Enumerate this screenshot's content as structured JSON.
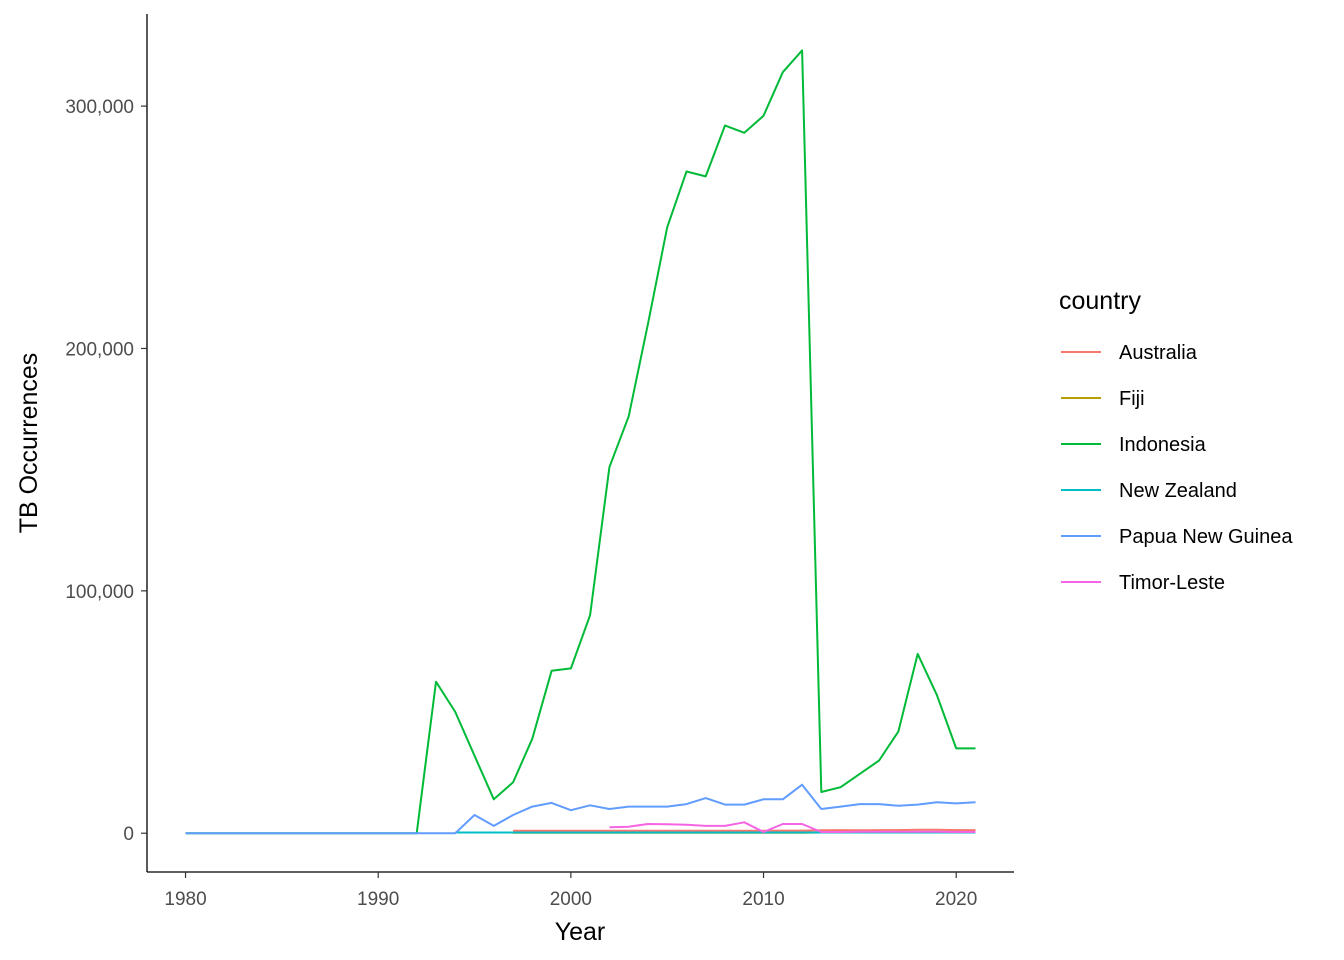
{
  "chart_data": {
    "type": "line",
    "title": "",
    "xlabel": "Year",
    "ylabel": "TB Occurrences",
    "xlim": [
      1978,
      2023
    ],
    "ylim": [
      -16000,
      338000
    ],
    "x_ticks": [
      1980,
      1990,
      2000,
      2010,
      2020
    ],
    "y_ticks": [
      0,
      100000,
      200000,
      300000
    ],
    "y_tick_labels": [
      "0",
      "100,000",
      "200,000",
      "300,000"
    ],
    "grid": false,
    "legend": {
      "title": "country",
      "position": "right"
    },
    "series": [
      {
        "name": "Australia",
        "color": "#F8766D",
        "x": [
          1997,
          1998,
          1999,
          2000,
          2001,
          2002,
          2003,
          2004,
          2005,
          2006,
          2007,
          2008,
          2009,
          2010,
          2011,
          2012,
          2013,
          2014,
          2015,
          2016,
          2017,
          2018,
          2019,
          2020,
          2021
        ],
        "y": [
          1000,
          1000,
          1000,
          1000,
          1000,
          1000,
          1000,
          1000,
          1000,
          1000,
          1000,
          1000,
          1000,
          1000,
          1100,
          1100,
          1200,
          1300,
          1200,
          1300,
          1300,
          1400,
          1400,
          1300,
          1300
        ]
      },
      {
        "name": "Fiji",
        "color": "#B79F00",
        "x": [
          1997,
          1998,
          1999,
          2000,
          2001,
          2002,
          2003,
          2004,
          2005,
          2006,
          2007,
          2008,
          2009,
          2010,
          2011,
          2012,
          2013,
          2014,
          2015,
          2016,
          2017,
          2018,
          2019,
          2020,
          2021
        ],
        "y": [
          200,
          200,
          200,
          200,
          200,
          200,
          200,
          200,
          200,
          200,
          200,
          200,
          200,
          200,
          200,
          200,
          300,
          300,
          300,
          300,
          400,
          400,
          400,
          300,
          300
        ]
      },
      {
        "name": "Indonesia",
        "color": "#00BA38",
        "x": [
          1980,
          1981,
          1982,
          1983,
          1984,
          1985,
          1986,
          1987,
          1988,
          1989,
          1990,
          1991,
          1992,
          1993,
          1994,
          1995,
          1996,
          1997,
          1998,
          1999,
          2000,
          2001,
          2002,
          2003,
          2004,
          2005,
          2006,
          2007,
          2008,
          2009,
          2010,
          2011,
          2012,
          2013,
          2014,
          2015,
          2016,
          2017,
          2018,
          2019,
          2020,
          2021
        ],
        "y": [
          0,
          0,
          0,
          0,
          0,
          0,
          0,
          0,
          0,
          0,
          0,
          0,
          0,
          62500,
          50000,
          32000,
          14000,
          21000,
          39000,
          67000,
          68000,
          90000,
          151000,
          172000,
          210000,
          250000,
          273000,
          271000,
          292000,
          289000,
          296000,
          314000,
          323000,
          17000,
          19000,
          24500,
          30000,
          42000,
          74000,
          57000,
          35000,
          35000
        ]
      },
      {
        "name": "New Zealand",
        "color": "#00BFC4",
        "x": [
          1994,
          1995,
          1996,
          1997,
          1998,
          1999,
          2000,
          2001,
          2002,
          2003,
          2004,
          2005,
          2006,
          2007,
          2008,
          2009,
          2010,
          2011,
          2012,
          2013,
          2014,
          2015,
          2016,
          2017,
          2018,
          2019,
          2020,
          2021
        ],
        "y": [
          300,
          300,
          300,
          300,
          300,
          300,
          300,
          300,
          300,
          300,
          300,
          300,
          300,
          300,
          300,
          300,
          300,
          300,
          300,
          300,
          300,
          300,
          300,
          300,
          300,
          300,
          300,
          300
        ]
      },
      {
        "name": "Papua New Guinea",
        "color": "#619CFF",
        "x": [
          1980,
          1981,
          1982,
          1983,
          1984,
          1985,
          1986,
          1987,
          1988,
          1989,
          1990,
          1991,
          1992,
          1993,
          1994,
          1995,
          1996,
          1997,
          1998,
          1999,
          2000,
          2001,
          2002,
          2003,
          2004,
          2005,
          2006,
          2007,
          2008,
          2009,
          2010,
          2011,
          2012,
          2013,
          2014,
          2015,
          2016,
          2017,
          2018,
          2019,
          2020,
          2021
        ],
        "y": [
          0,
          0,
          0,
          0,
          0,
          0,
          0,
          0,
          0,
          0,
          0,
          0,
          0,
          0,
          0,
          7500,
          3000,
          7500,
          11000,
          12500,
          9500,
          11500,
          10000,
          11000,
          11000,
          11000,
          12000,
          14500,
          11800,
          11800,
          14000,
          14000,
          20000,
          10000,
          11000,
          12000,
          12000,
          11300,
          11800,
          12800,
          12300,
          12800
        ]
      },
      {
        "name": "Timor-Leste",
        "color": "#F564E3",
        "x": [
          2002,
          2003,
          2004,
          2005,
          2006,
          2007,
          2008,
          2009,
          2010,
          2011,
          2012,
          2013,
          2014,
          2015,
          2016,
          2017,
          2018,
          2019,
          2020,
          2021
        ],
        "y": [
          2500,
          2700,
          3800,
          3700,
          3500,
          3000,
          3000,
          4500,
          500,
          3800,
          3800,
          500,
          500,
          600,
          600,
          600,
          600,
          600,
          500,
          500
        ]
      }
    ]
  }
}
